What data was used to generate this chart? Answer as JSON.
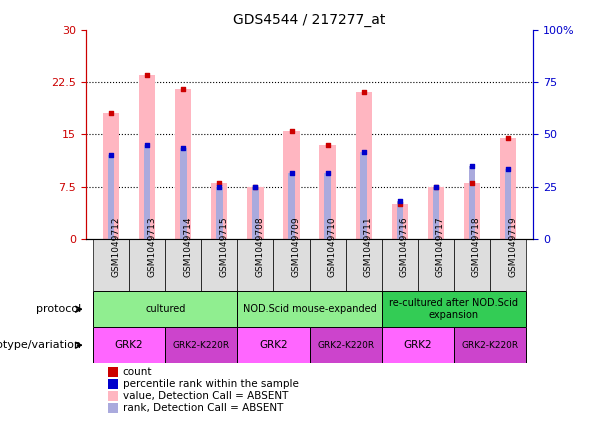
{
  "title": "GDS4544 / 217277_at",
  "samples": [
    "GSM1049712",
    "GSM1049713",
    "GSM1049714",
    "GSM1049715",
    "GSM1049708",
    "GSM1049709",
    "GSM1049710",
    "GSM1049711",
    "GSM1049716",
    "GSM1049717",
    "GSM1049718",
    "GSM1049719"
  ],
  "pink_bar_heights": [
    18.0,
    23.5,
    21.5,
    8.0,
    7.5,
    15.5,
    13.5,
    21.0,
    5.0,
    7.5,
    8.0,
    14.5
  ],
  "blue_bar_heights": [
    12.0,
    13.5,
    13.0,
    7.5,
    7.5,
    9.5,
    9.5,
    12.5,
    5.5,
    7.5,
    10.5,
    10.0
  ],
  "ylim_left": [
    0,
    30
  ],
  "ylim_right": [
    0,
    100
  ],
  "yticks_left": [
    0,
    7.5,
    15,
    22.5,
    30
  ],
  "yticks_right": [
    0,
    25,
    50,
    75,
    100
  ],
  "ytick_labels_left": [
    "0",
    "7.5",
    "15",
    "22.5",
    "30"
  ],
  "ytick_labels_right": [
    "0",
    "25",
    "50",
    "75",
    "100%"
  ],
  "grid_lines": [
    7.5,
    15.0,
    22.5
  ],
  "protocol_groups": [
    {
      "label": "cultured",
      "start": 0,
      "end": 4,
      "color": "#90EE90"
    },
    {
      "label": "NOD.Scid mouse-expanded",
      "start": 4,
      "end": 8,
      "color": "#90EE90"
    },
    {
      "label": "re-cultured after NOD.Scid\nexpansion",
      "start": 8,
      "end": 12,
      "color": "#33CC55"
    }
  ],
  "genotype_groups": [
    {
      "label": "GRK2",
      "start": 0,
      "end": 2,
      "color": "#FF66FF"
    },
    {
      "label": "GRK2-K220R",
      "start": 2,
      "end": 4,
      "color": "#CC44CC"
    },
    {
      "label": "GRK2",
      "start": 4,
      "end": 6,
      "color": "#FF66FF"
    },
    {
      "label": "GRK2-K220R",
      "start": 6,
      "end": 8,
      "color": "#CC44CC"
    },
    {
      "label": "GRK2",
      "start": 8,
      "end": 10,
      "color": "#FF66FF"
    },
    {
      "label": "GRK2-K220R",
      "start": 10,
      "end": 12,
      "color": "#CC44CC"
    }
  ],
  "legend_items": [
    {
      "label": "count",
      "color": "#CC0000"
    },
    {
      "label": "percentile rank within the sample",
      "color": "#0000CC"
    },
    {
      "label": "value, Detection Call = ABSENT",
      "color": "#FFB6C1"
    },
    {
      "label": "rank, Detection Call = ABSENT",
      "color": "#AAAADD"
    }
  ],
  "protocol_label": "protocol",
  "genotype_label": "genotype/variation",
  "pink_color": "#FFB6C1",
  "blue_bar_color": "#AAAADD",
  "red_dot_color": "#CC0000",
  "blue_dot_color": "#0000CC",
  "left_axis_color": "#CC0000",
  "right_axis_color": "#0000CC",
  "bg_color": "#FFFFFF",
  "plot_bg_color": "#FFFFFF",
  "xticklabel_bg": "#DDDDDD"
}
